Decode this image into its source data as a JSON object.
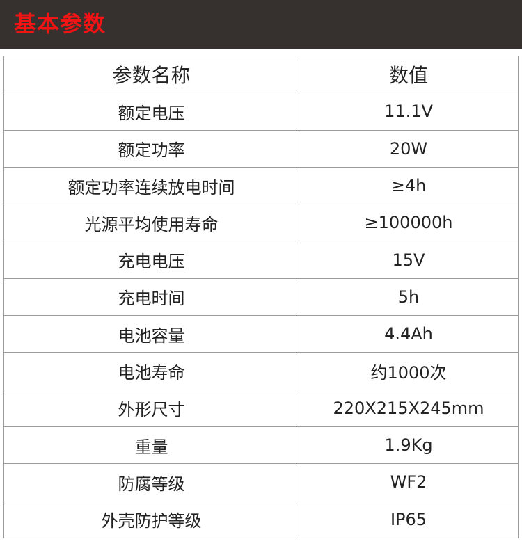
{
  "banner": {
    "title": "基本参数",
    "title_color": "#f01414",
    "background": "#36302e"
  },
  "table": {
    "headers": [
      "参数名称",
      "数值"
    ],
    "rows": [
      [
        "额定电压",
        "11.1V"
      ],
      [
        "额定功率",
        "20W"
      ],
      [
        "额定功率连续放电时间",
        "≥4h"
      ],
      [
        "光源平均使用寿命",
        "≥100000h"
      ],
      [
        "充电电压",
        "15V"
      ],
      [
        "充电时间",
        "5h"
      ],
      [
        "电池容量",
        "4.4Ah"
      ],
      [
        "电池寿命",
        "约1000次"
      ],
      [
        "外形尺寸",
        "220X215X245mm"
      ],
      [
        "重量",
        "1.9Kg"
      ],
      [
        "防腐等级",
        "WF2"
      ],
      [
        "外壳防护等级",
        "IP65"
      ]
    ]
  }
}
